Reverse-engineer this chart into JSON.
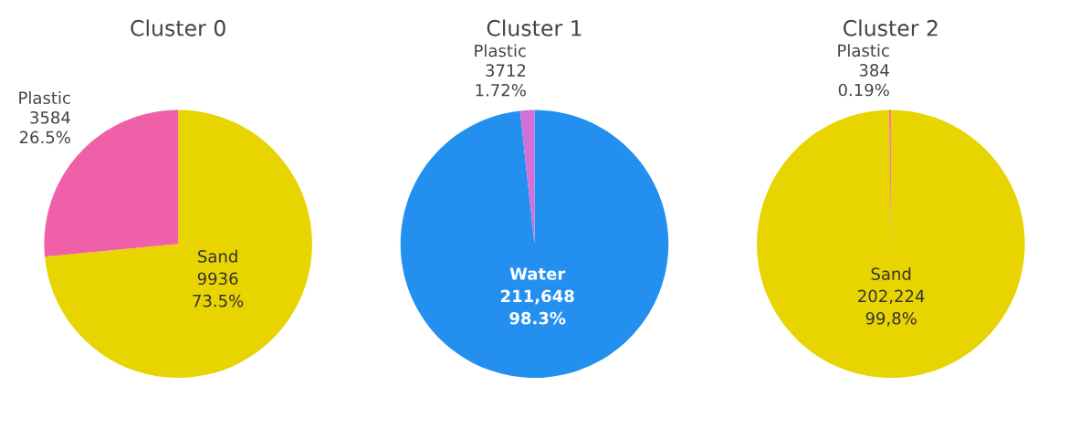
{
  "chart_data": [
    {
      "type": "pie",
      "title": "Cluster 0",
      "categories": [
        "Sand",
        "Plastic"
      ],
      "values": [
        9936,
        3584
      ],
      "colors": [
        "#e8d400",
        "#f060a8"
      ],
      "value_labels": [
        "9936\n73.5%",
        "3584\n26.5%"
      ]
    },
    {
      "type": "pie",
      "title": "Cluster 1",
      "categories": [
        "Water",
        "Plastic"
      ],
      "values": [
        211648,
        3712
      ],
      "colors": [
        "#2390f0",
        "#d070d8"
      ],
      "value_labels": [
        "211,648\n98.3%",
        "3712\n1.72%"
      ]
    },
    {
      "type": "pie",
      "title": "Cluster 2",
      "categories": [
        "Sand",
        "Plastic"
      ],
      "values": [
        202224,
        384
      ],
      "colors": [
        "#e8d400",
        "#f060a8"
      ],
      "value_labels": [
        "202,224\n99,8%",
        "384\n0.19%"
      ]
    }
  ]
}
